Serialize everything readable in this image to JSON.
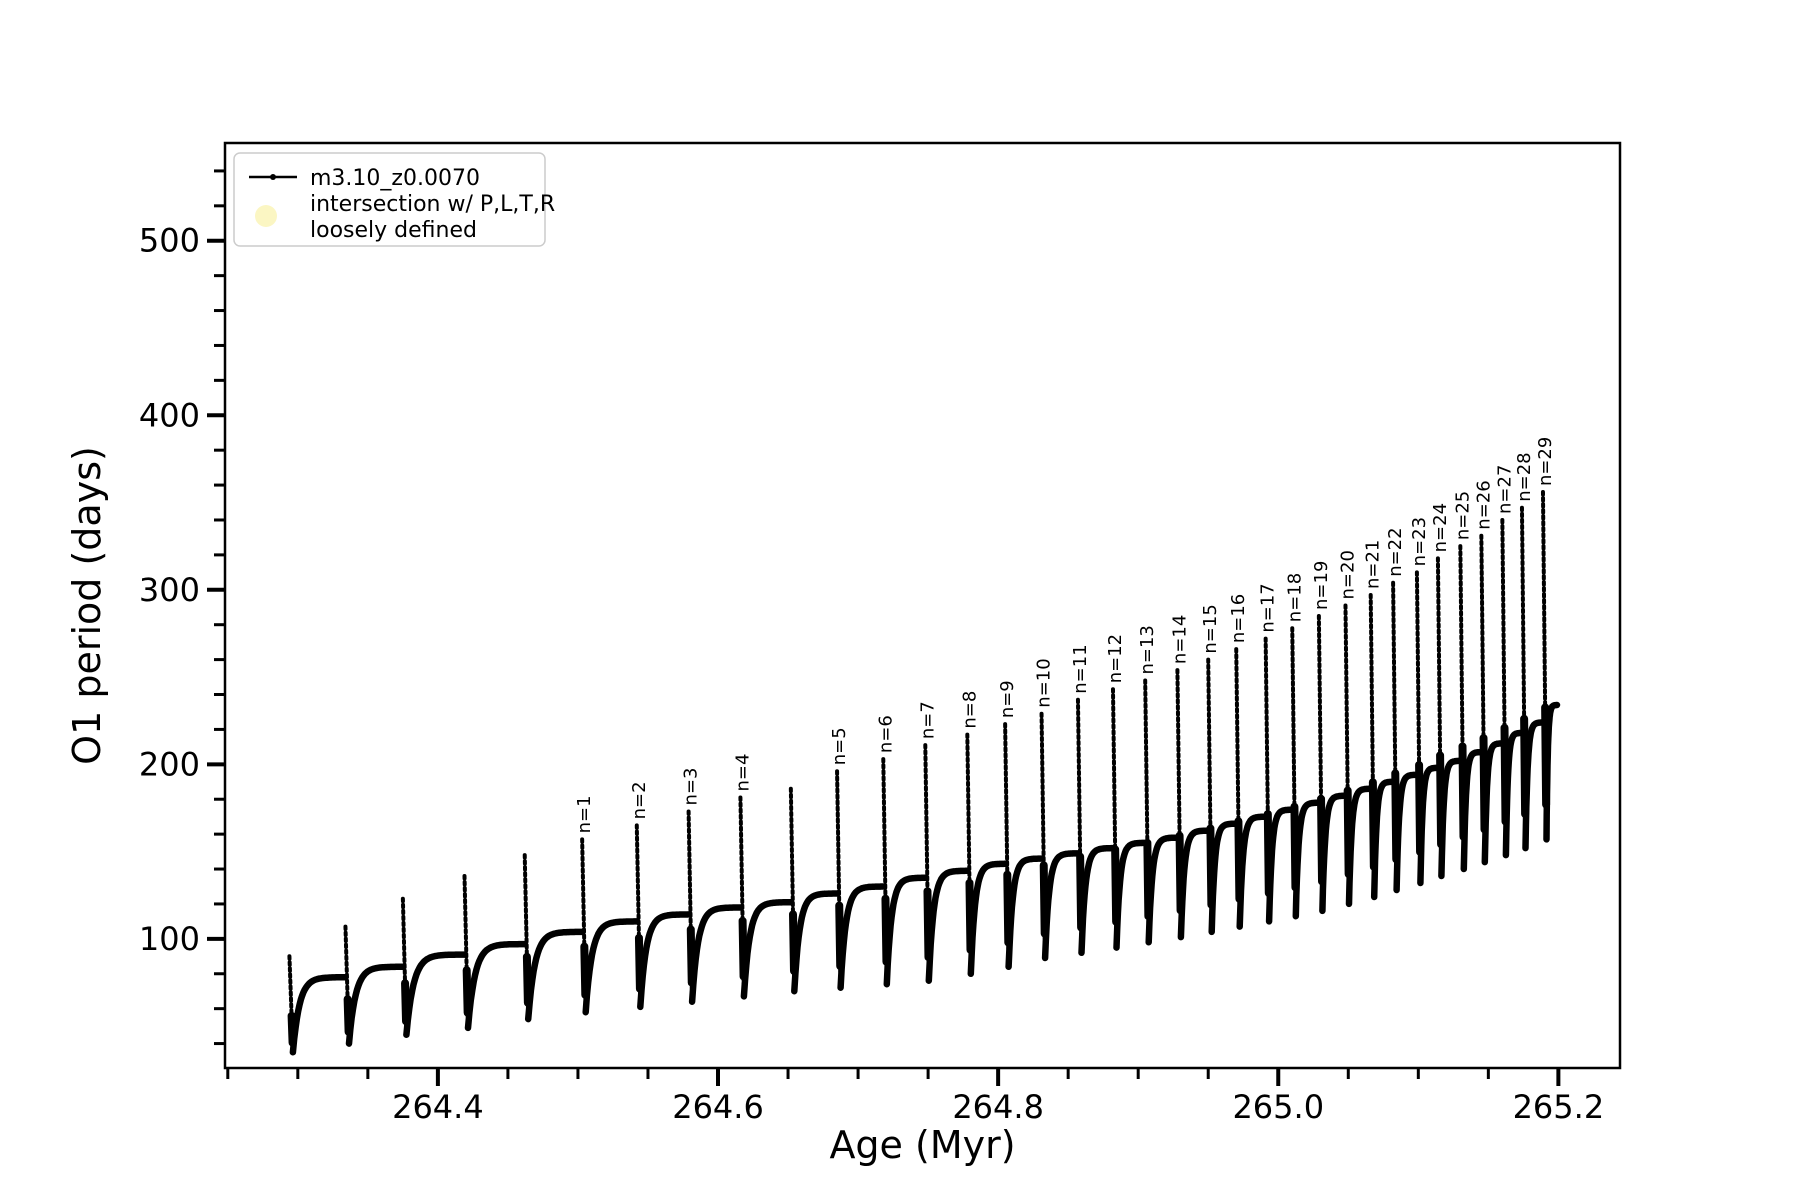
{
  "figure": {
    "background": "#ffffff",
    "axes": {
      "xlabel": "Age (Myr)",
      "ylabel": "O1 period (days)",
      "xlim": [
        264.248,
        265.244
      ],
      "ylim": [
        26,
        556
      ],
      "xticks_major": [
        264.4,
        264.6,
        264.8,
        265.0,
        265.2
      ],
      "xtick_labels": [
        "264.4",
        "264.6",
        "264.8",
        "265.0",
        "265.2"
      ],
      "xtick_minor_step": 0.05,
      "yticks_major": [
        100,
        200,
        300,
        400,
        500
      ],
      "ytick_labels": [
        "100",
        "200",
        "300",
        "400",
        "500"
      ],
      "ytick_minor_step": 20,
      "frame_color": "#000000",
      "grid": false
    },
    "legend": {
      "position": "upper-left",
      "entries": [
        {
          "type": "line-dot",
          "label": "m3.10_z0.0070",
          "color": "#000000"
        },
        {
          "type": "circle",
          "label_line1": "intersection w/ P,L,T,R",
          "label_line2": "loosely defined",
          "color": "#fbf6c3"
        }
      ]
    },
    "chart_data": {
      "type": "line",
      "series_name": "m3.10_z0.0070",
      "title": "",
      "xlabel": "Age (Myr)",
      "ylabel": "O1 period (days)",
      "line_color": "#000000",
      "description": "Sawtooth pulse train: each cycle has a narrow vertical spike up to 'top', a rapid drop to deep minimum 'min', then a slow concave recovery to plateau 'plat' before the next spike. Spikes n=1..n=29 are annotated.",
      "cycles": [
        {
          "label": "",
          "age": 264.294,
          "top": 90,
          "min": 35,
          "plat": 78
        },
        {
          "label": "",
          "age": 264.334,
          "top": 107,
          "min": 40,
          "plat": 84
        },
        {
          "label": "",
          "age": 264.375,
          "top": 123,
          "min": 45,
          "plat": 91
        },
        {
          "label": "",
          "age": 264.419,
          "top": 136,
          "min": 49,
          "plat": 97
        },
        {
          "label": "",
          "age": 264.462,
          "top": 148,
          "min": 54,
          "plat": 104
        },
        {
          "label": "n=1",
          "age": 264.503,
          "top": 157,
          "min": 58,
          "plat": 110
        },
        {
          "label": "n=2",
          "age": 264.542,
          "top": 165,
          "min": 61,
          "plat": 114
        },
        {
          "label": "n=3",
          "age": 264.579,
          "top": 173,
          "min": 64,
          "plat": 118
        },
        {
          "label": "n=4",
          "age": 264.616,
          "top": 181,
          "min": 67,
          "plat": 121
        },
        {
          "label": "",
          "age": 264.652,
          "top": 186,
          "min": 70,
          "plat": 126
        },
        {
          "label": "n=5",
          "age": 264.685,
          "top": 196,
          "min": 72,
          "plat": 130
        },
        {
          "label": "n=6",
          "age": 264.718,
          "top": 203,
          "min": 74,
          "plat": 135
        },
        {
          "label": "n=7",
          "age": 264.748,
          "top": 211,
          "min": 76,
          "plat": 139
        },
        {
          "label": "n=8",
          "age": 264.778,
          "top": 217,
          "min": 80,
          "plat": 143
        },
        {
          "label": "n=9",
          "age": 264.805,
          "top": 223,
          "min": 84,
          "plat": 146
        },
        {
          "label": "n=10",
          "age": 264.831,
          "top": 229,
          "min": 89,
          "plat": 149
        },
        {
          "label": "n=11",
          "age": 264.857,
          "top": 237,
          "min": 92,
          "plat": 152
        },
        {
          "label": "n=12",
          "age": 264.882,
          "top": 243,
          "min": 95,
          "plat": 155
        },
        {
          "label": "n=13",
          "age": 264.905,
          "top": 248,
          "min": 98,
          "plat": 158
        },
        {
          "label": "n=14",
          "age": 264.928,
          "top": 254,
          "min": 101,
          "plat": 162
        },
        {
          "label": "n=15",
          "age": 264.95,
          "top": 260,
          "min": 104,
          "plat": 166
        },
        {
          "label": "n=16",
          "age": 264.97,
          "top": 266,
          "min": 107,
          "plat": 170
        },
        {
          "label": "n=17",
          "age": 264.991,
          "top": 272,
          "min": 110,
          "plat": 174
        },
        {
          "label": "n=18",
          "age": 265.01,
          "top": 278,
          "min": 113,
          "plat": 178
        },
        {
          "label": "n=19",
          "age": 265.029,
          "top": 285,
          "min": 116,
          "plat": 182
        },
        {
          "label": "n=20",
          "age": 265.048,
          "top": 291,
          "min": 120,
          "plat": 186
        },
        {
          "label": "n=21",
          "age": 265.066,
          "top": 297,
          "min": 124,
          "plat": 190
        },
        {
          "label": "n=22",
          "age": 265.082,
          "top": 304,
          "min": 128,
          "plat": 194
        },
        {
          "label": "n=23",
          "age": 265.099,
          "top": 310,
          "min": 132,
          "plat": 198
        },
        {
          "label": "n=24",
          "age": 265.114,
          "top": 318,
          "min": 136,
          "plat": 202
        },
        {
          "label": "n=25",
          "age": 265.13,
          "top": 325,
          "min": 140,
          "plat": 207
        },
        {
          "label": "n=26",
          "age": 265.145,
          "top": 331,
          "min": 144,
          "plat": 212
        },
        {
          "label": "n=27",
          "age": 265.16,
          "top": 340,
          "min": 148,
          "plat": 218
        },
        {
          "label": "n=28",
          "age": 265.174,
          "top": 347,
          "min": 152,
          "plat": 224
        },
        {
          "label": "n=29",
          "age": 265.189,
          "top": 356,
          "min": 157,
          "plat": 234
        }
      ],
      "end_point": {
        "age": 265.199,
        "value": 234
      },
      "legend_entries": [
        "m3.10_z0.0070",
        "intersection w/ P,L,T,R loosely defined"
      ]
    }
  }
}
